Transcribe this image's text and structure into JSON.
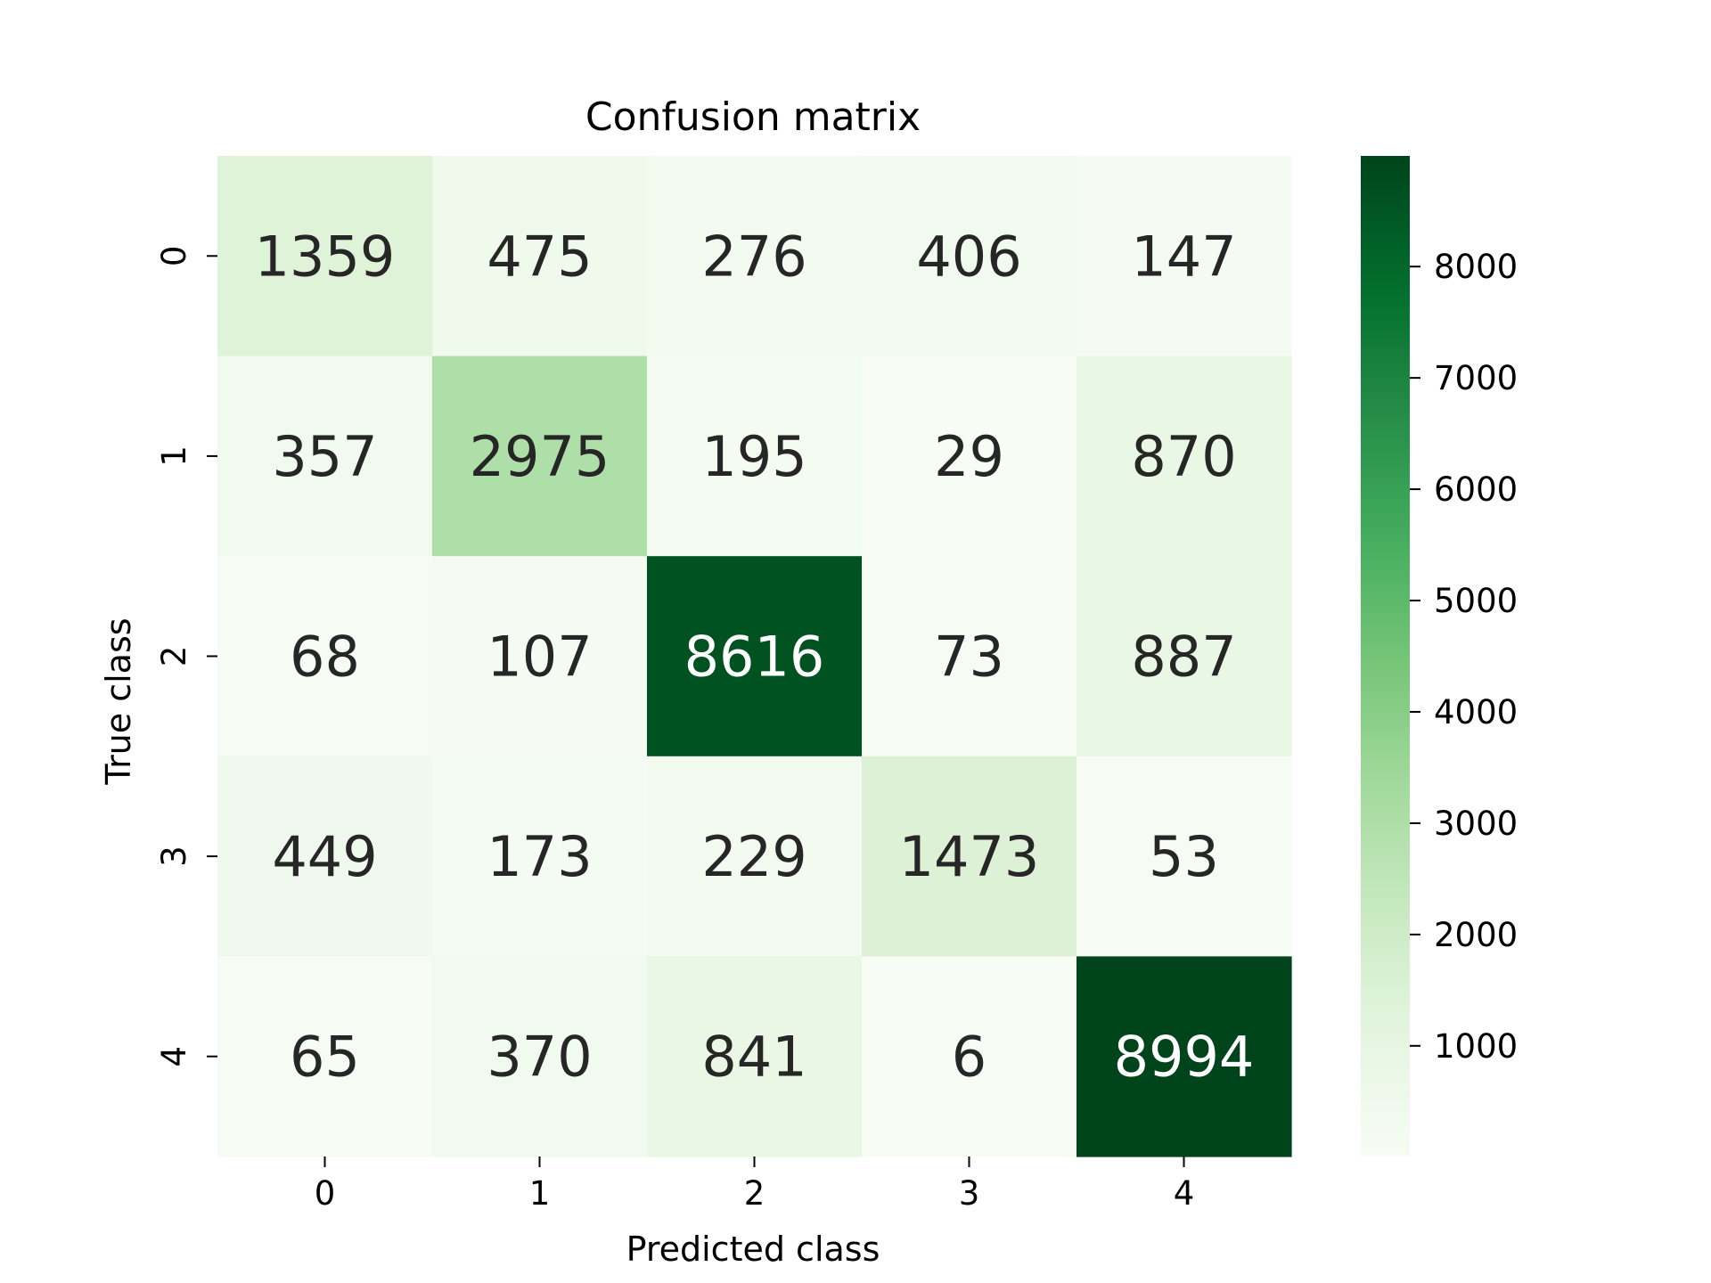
{
  "chart_data": {
    "type": "heatmap",
    "title": "Confusion matrix",
    "xlabel": "Predicted class",
    "ylabel": "True class",
    "x_categories": [
      "0",
      "1",
      "2",
      "3",
      "4"
    ],
    "y_categories": [
      "0",
      "1",
      "2",
      "3",
      "4"
    ],
    "values": [
      [
        1359,
        475,
        276,
        406,
        147
      ],
      [
        357,
        2975,
        195,
        29,
        870
      ],
      [
        68,
        107,
        8616,
        73,
        887
      ],
      [
        449,
        173,
        229,
        1473,
        53
      ],
      [
        65,
        370,
        841,
        6,
        8994
      ]
    ],
    "colormap": "Greens",
    "colorbar": {
      "range": [
        6,
        8994
      ],
      "ticks": [
        1000,
        2000,
        3000,
        4000,
        5000,
        6000,
        7000,
        8000
      ],
      "tick_labels": [
        "1000",
        "2000",
        "3000",
        "4000",
        "5000",
        "6000",
        "7000",
        "8000"
      ]
    },
    "grid": false,
    "colors": {
      "low": "#f7fcf5",
      "high": "#00441b",
      "text_dark": "#262626",
      "text_light": "#ffffff"
    }
  }
}
